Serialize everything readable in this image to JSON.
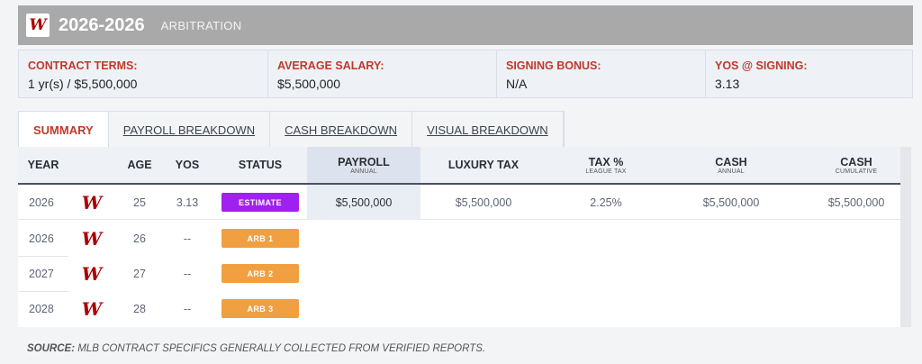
{
  "header": {
    "logo_letter": "W",
    "title": "2026-2026",
    "subtitle": "ARBITRATION"
  },
  "terms": [
    {
      "label": "CONTRACT TERMS:",
      "value": "1 yr(s) / $5,500,000"
    },
    {
      "label": "AVERAGE SALARY:",
      "value": "$5,500,000"
    },
    {
      "label": "SIGNING BONUS:",
      "value": "N/A"
    },
    {
      "label": "YOS @ SIGNING:",
      "value": "3.13"
    }
  ],
  "tabs": [
    {
      "label": "SUMMARY"
    },
    {
      "label": "PAYROLL BREAKDOWN"
    },
    {
      "label": "CASH BREAKDOWN"
    },
    {
      "label": "VISUAL BREAKDOWN"
    }
  ],
  "columns": {
    "year": "YEAR",
    "age": "AGE",
    "yos": "YOS",
    "status": "STATUS",
    "payroll": "PAYROLL",
    "payroll_sub": "ANNUAL",
    "luxury": "LUXURY TAX",
    "taxpct": "TAX %",
    "taxpct_sub": "LEAGUE TAX",
    "cash": "CASH",
    "cash_sub": "ANNUAL",
    "cashcum": "CASH",
    "cashcum_sub": "CUMULATIVE"
  },
  "rows": [
    {
      "year": "2026",
      "logo": "W",
      "age": "25",
      "yos": "3.13",
      "status": "ESTIMATE",
      "status_color": "#a020f0",
      "payroll": "$5,500,000",
      "luxury": "$5,500,000",
      "taxpct": "2.25%",
      "cash": "$5,500,000",
      "cashcum": "$5,500,000"
    },
    {
      "year": "2026",
      "logo": "W",
      "age": "26",
      "yos": "--",
      "status": "ARB 1",
      "status_color": "#f0a040"
    },
    {
      "year": "2027",
      "logo": "W",
      "age": "27",
      "yos": "--",
      "status": "ARB 2",
      "status_color": "#f0a040"
    },
    {
      "year": "2028",
      "logo": "W",
      "age": "28",
      "yos": "--",
      "status": "ARB 3",
      "status_color": "#f0a040"
    }
  ],
  "source": {
    "label": "SOURCE:",
    "text": " MLB CONTRACT SPECIFICS GENERALLY COLLECTED FROM VERIFIED REPORTS."
  }
}
